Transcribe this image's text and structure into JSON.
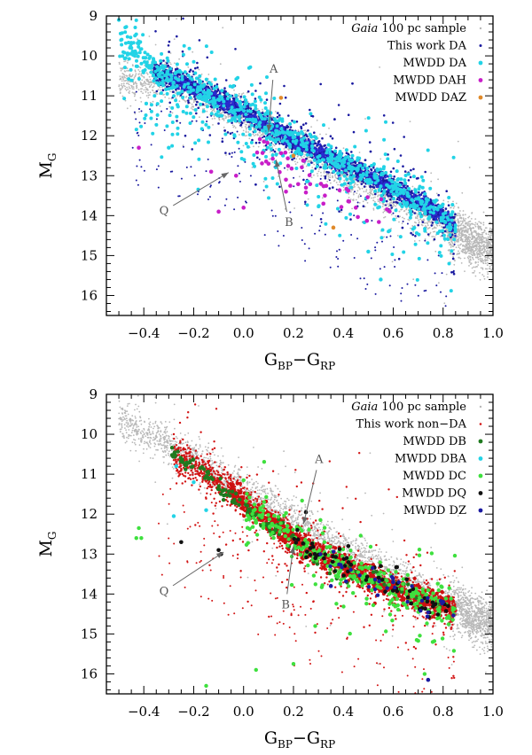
{
  "chart_data": [
    {
      "type": "scatter",
      "panel": "top",
      "xlabel": "G_BP − G_RP",
      "xlabel_main": "G",
      "xlabel_sub1": "BP",
      "xlabel_sep": "−G",
      "xlabel_sub2": "RP",
      "ylabel_main": "M",
      "ylabel_sub": "G",
      "xlim": [
        -0.55,
        1.0
      ],
      "ylim": [
        16.5,
        9.0
      ],
      "y_inverted": true,
      "xticks": [
        -0.4,
        -0.2,
        0.0,
        0.2,
        0.4,
        0.6,
        0.8,
        1.0
      ],
      "xtick_labels": [
        "−0.4",
        "−0.2",
        "0.0",
        "0.2",
        "0.4",
        "0.6",
        "0.8",
        "1.0"
      ],
      "yticks": [
        9,
        10,
        11,
        12,
        13,
        14,
        15,
        16
      ],
      "ytick_labels": [
        "9",
        "10",
        "11",
        "12",
        "13",
        "14",
        "15",
        "16"
      ],
      "legend_placement": "top-right",
      "legend": [
        {
          "label_em": "Gaia",
          "label": " 100 pc sample",
          "color": "#b8b8b8"
        },
        {
          "label": "This work DA",
          "color": "#1a1aa0"
        },
        {
          "label": "MWDD DA",
          "color": "#22d3e6"
        },
        {
          "label": "MWDD DAH",
          "color": "#c81ec8"
        },
        {
          "label": "MWDD DAZ",
          "color": "#e08a2a"
        }
      ],
      "annotations": [
        {
          "text": "A",
          "points_to": [
            0.1,
            11.9
          ]
        },
        {
          "text": "B",
          "points_to": [
            0.12,
            12.7
          ]
        },
        {
          "text": "Q",
          "points_to": [
            -0.05,
            12.9
          ]
        }
      ],
      "series": [
        {
          "name": "Gaia 100 pc sample",
          "color": "#b8b8b8",
          "sequence": {
            "x": [
              -0.3,
              0.0,
              0.3,
              0.6,
              0.9,
              1.0
            ],
            "y": [
              10.6,
              11.5,
              12.6,
              13.6,
              14.6,
              14.9
            ]
          }
        },
        {
          "name": "This work DA",
          "color": "#1a1aa0",
          "sequence": {
            "x": [
              -0.35,
              -0.2,
              0.0,
              0.2,
              0.4,
              0.6,
              0.8,
              0.85
            ],
            "y": [
              10.4,
              10.8,
              11.4,
              12.1,
              12.7,
              13.3,
              14.0,
              14.3
            ]
          }
        },
        {
          "name": "MWDD DA",
          "color": "#22d3e6",
          "outliers": [
            {
              "x": -0.5,
              "y": 9.1
            },
            {
              "x": -0.45,
              "y": 9.8
            },
            {
              "x": -0.3,
              "y": 12.3
            },
            {
              "x": 0.55,
              "y": 15.6
            },
            {
              "x": 0.5,
              "y": 14.9
            }
          ]
        },
        {
          "name": "MWDD DAH",
          "color": "#c81ec8",
          "points": [
            {
              "x": -0.42,
              "y": 12.3
            },
            {
              "x": -0.13,
              "y": 12.9
            },
            {
              "x": -0.03,
              "y": 13.0
            },
            {
              "x": 0.1,
              "y": 12.7
            },
            {
              "x": 0.17,
              "y": 13.4
            },
            {
              "x": 0.25,
              "y": 13.3
            },
            {
              "x": 0.32,
              "y": 13.7
            },
            {
              "x": 0.45,
              "y": 13.8
            },
            {
              "x": -0.1,
              "y": 13.9
            },
            {
              "x": 0.0,
              "y": 13.8
            }
          ]
        },
        {
          "name": "MWDD DAZ",
          "color": "#e08a2a",
          "points": [
            {
              "x": 0.15,
              "y": 11.05
            },
            {
              "x": 0.36,
              "y": 14.3
            },
            {
              "x": 0.2,
              "y": 12.5
            }
          ]
        }
      ]
    },
    {
      "type": "scatter",
      "panel": "bottom",
      "xlabel": "G_BP − G_RP",
      "xlabel_main": "G",
      "xlabel_sub1": "BP",
      "xlabel_sep": "−G",
      "xlabel_sub2": "RP",
      "ylabel_main": "M",
      "ylabel_sub": "G",
      "xlim": [
        -0.55,
        1.0
      ],
      "ylim": [
        16.5,
        9.0
      ],
      "y_inverted": true,
      "xticks": [
        -0.4,
        -0.2,
        0.0,
        0.2,
        0.4,
        0.6,
        0.8,
        1.0
      ],
      "xtick_labels": [
        "−0.4",
        "−0.2",
        "0.0",
        "0.2",
        "0.4",
        "0.6",
        "0.8",
        "1.0"
      ],
      "yticks": [
        9,
        10,
        11,
        12,
        13,
        14,
        15,
        16
      ],
      "ytick_labels": [
        "9",
        "10",
        "11",
        "12",
        "13",
        "14",
        "15",
        "16"
      ],
      "legend_placement": "top-right",
      "legend": [
        {
          "label_em": "Gaia",
          "label": " 100 pc sample",
          "color": "#b8b8b8"
        },
        {
          "label": "This work non−DA",
          "color": "#d21414"
        },
        {
          "label": "MWDD DB",
          "color": "#1f7a1f"
        },
        {
          "label": "MWDD DBA",
          "color": "#22d3e6"
        },
        {
          "label": "MWDD DC",
          "color": "#3ee03e"
        },
        {
          "label": "MWDD DQ",
          "color": "#111111"
        },
        {
          "label": "MWDD DZ",
          "color": "#1a1aa0"
        }
      ],
      "annotations": [
        {
          "text": "A",
          "points_to": [
            0.23,
            12.3
          ]
        },
        {
          "text": "B",
          "points_to": [
            0.2,
            12.8
          ]
        },
        {
          "text": "Q",
          "points_to": [
            -0.08,
            12.95
          ]
        }
      ],
      "series": [
        {
          "name": "Gaia 100 pc sample",
          "color": "#b8b8b8",
          "sequence": {
            "x": [
              -0.5,
              -0.2,
              0.0,
              0.3,
              0.6,
              0.9,
              1.0
            ],
            "y": [
              9.6,
              10.6,
              11.4,
              12.5,
              13.5,
              14.5,
              14.8
            ]
          }
        },
        {
          "name": "This work non−DA",
          "color": "#d21414",
          "sequence": {
            "x": [
              -0.28,
              -0.1,
              0.1,
              0.3,
              0.5,
              0.7,
              0.85
            ],
            "y": [
              10.5,
              11.2,
              12.2,
              13.0,
              13.6,
              14.1,
              14.4
            ]
          }
        },
        {
          "name": "MWDD DB",
          "color": "#1f7a1f",
          "sequence": {
            "x": [
              -0.3,
              -0.15,
              0.0,
              0.1
            ],
            "y": [
              10.45,
              11.0,
              11.8,
              12.3
            ]
          }
        },
        {
          "name": "MWDD DBA",
          "color": "#22d3e6",
          "points": [
            {
              "x": -0.27,
              "y": 10.8
            },
            {
              "x": -0.2,
              "y": 11.2
            },
            {
              "x": -0.28,
              "y": 12.05
            },
            {
              "x": -0.15,
              "y": 11.9
            }
          ]
        },
        {
          "name": "MWDD DC",
          "color": "#3ee03e",
          "outliers": [
            {
              "x": -0.42,
              "y": 12.35
            },
            {
              "x": -0.43,
              "y": 12.6
            },
            {
              "x": -0.41,
              "y": 12.6
            },
            {
              "x": 0.05,
              "y": 15.9
            },
            {
              "x": 0.2,
              "y": 15.75
            },
            {
              "x": -0.15,
              "y": 16.3
            }
          ]
        },
        {
          "name": "MWDD DQ",
          "color": "#111111",
          "points": [
            {
              "x": -0.25,
              "y": 12.7
            },
            {
              "x": -0.1,
              "y": 12.9
            },
            {
              "x": -0.09,
              "y": 13.0
            },
            {
              "x": 0.25,
              "y": 11.95
            },
            {
              "x": 0.42,
              "y": 12.8
            },
            {
              "x": 0.55,
              "y": 13.3
            },
            {
              "x": 0.82,
              "y": 14.3
            }
          ]
        },
        {
          "name": "MWDD DZ",
          "color": "#1a1aa0",
          "points": [
            {
              "x": 0.74,
              "y": 16.15
            },
            {
              "x": 0.35,
              "y": 13.8
            },
            {
              "x": 0.6,
              "y": 13.7
            },
            {
              "x": 0.8,
              "y": 14.2
            }
          ]
        }
      ]
    }
  ]
}
